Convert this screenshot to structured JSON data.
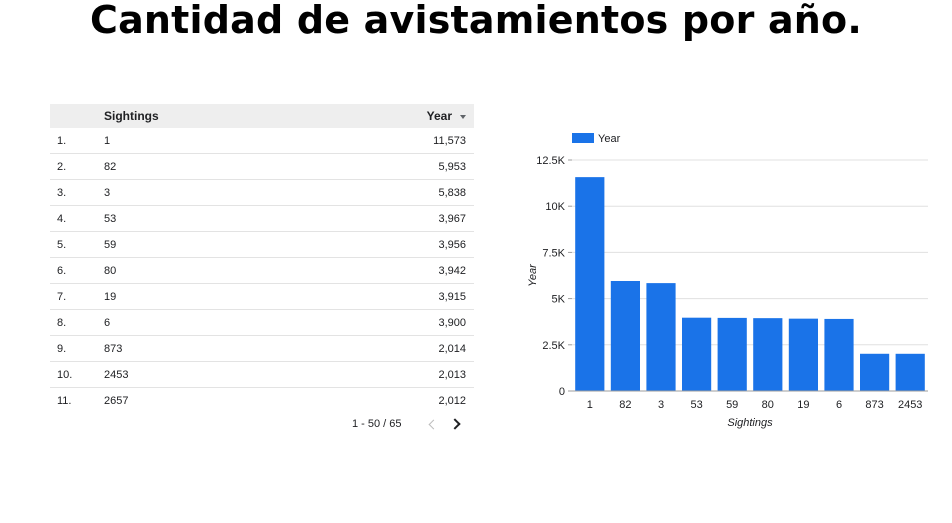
{
  "title": "Cantidad de avistamientos por año.",
  "table": {
    "headers": {
      "sightings": "Sightings",
      "year": "Year"
    },
    "rows": [
      {
        "index": "1.",
        "sightings": "1",
        "year": "11,573"
      },
      {
        "index": "2.",
        "sightings": "82",
        "year": "5,953"
      },
      {
        "index": "3.",
        "sightings": "3",
        "year": "5,838"
      },
      {
        "index": "4.",
        "sightings": "53",
        "year": "3,967"
      },
      {
        "index": "5.",
        "sightings": "59",
        "year": "3,956"
      },
      {
        "index": "6.",
        "sightings": "80",
        "year": "3,942"
      },
      {
        "index": "7.",
        "sightings": "19",
        "year": "3,915"
      },
      {
        "index": "8.",
        "sightings": "6",
        "year": "3,900"
      },
      {
        "index": "9.",
        "sightings": "873",
        "year": "2,014"
      },
      {
        "index": "10.",
        "sightings": "2453",
        "year": "2,013"
      },
      {
        "index": "11.",
        "sightings": "2657",
        "year": "2,012"
      }
    ],
    "pager_label": "1 - 50 / 65"
  },
  "chart_data": {
    "type": "bar",
    "categories": [
      "1",
      "82",
      "3",
      "53",
      "59",
      "80",
      "19",
      "6",
      "873",
      "2453"
    ],
    "series": [
      {
        "name": "Year",
        "values": [
          11573,
          5953,
          5838,
          3967,
          3956,
          3942,
          3915,
          3900,
          2014,
          2013
        ],
        "color": "#1a73e8"
      }
    ],
    "xlabel": "Sightings",
    "ylabel": "Year",
    "ylim": [
      0,
      12500
    ],
    "yticks": [
      0,
      2500,
      5000,
      7500,
      10000,
      12500
    ],
    "ytick_labels": [
      "0",
      "2.5K",
      "5K",
      "7.5K",
      "10K",
      "12.5K"
    ],
    "grid": true,
    "legend": "top-left"
  }
}
